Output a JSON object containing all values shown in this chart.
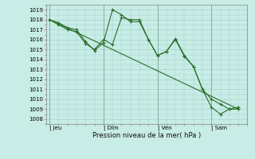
{
  "xlabel": "Pression niveau de la mer( hPa )",
  "ylim": [
    1007.5,
    1019.5
  ],
  "y_ticks": [
    1008,
    1009,
    1010,
    1011,
    1012,
    1013,
    1014,
    1015,
    1016,
    1017,
    1018,
    1019
  ],
  "background_color": "#c8ece6",
  "grid_color": "#9dccc4",
  "line_color": "#2a6e2a",
  "x_tick_positions": [
    0.0,
    3.0,
    6.0,
    9.0
  ],
  "x_tick_labels": [
    "| Jeu",
    "| Dim",
    "| Ven",
    "| Sam"
  ],
  "xlim": [
    -0.2,
    11.0
  ],
  "series1_x": [
    0.0,
    0.5,
    1.0,
    1.5,
    2.0,
    2.5,
    3.0,
    3.5,
    4.0,
    4.5,
    5.0,
    5.5,
    6.0,
    6.5,
    7.0,
    7.5,
    8.0,
    8.5,
    9.0,
    9.5,
    10.0,
    10.5
  ],
  "series1_y": [
    1018.0,
    1017.7,
    1017.2,
    1017.0,
    1015.8,
    1014.9,
    1015.7,
    1019.0,
    1018.5,
    1017.8,
    1017.8,
    1016.0,
    1014.4,
    1014.8,
    1016.1,
    1014.4,
    1013.3,
    1011.0,
    1010.0,
    1009.5,
    1009.0,
    1009.0
  ],
  "series2_x": [
    0.0,
    0.5,
    1.0,
    1.5,
    2.0,
    2.5,
    3.0,
    3.5,
    4.0,
    4.5,
    5.0,
    5.5,
    6.0,
    6.5,
    7.0,
    7.5,
    8.0,
    8.5,
    9.0,
    9.5,
    10.0,
    10.5
  ],
  "series2_y": [
    1018.0,
    1017.5,
    1017.0,
    1016.8,
    1015.6,
    1015.0,
    1016.0,
    1015.5,
    1018.2,
    1018.0,
    1018.0,
    1016.0,
    1014.4,
    1014.8,
    1016.0,
    1014.3,
    1013.3,
    1011.0,
    1009.2,
    1008.5,
    1009.0,
    1009.2
  ],
  "series3_x": [
    0.0,
    10.5
  ],
  "series3_y": [
    1018.0,
    1009.0
  ],
  "line_width": 0.8,
  "marker": "+",
  "marker_size": 3.0,
  "tick_fontsize": 5.0,
  "xlabel_fontsize": 6.0
}
